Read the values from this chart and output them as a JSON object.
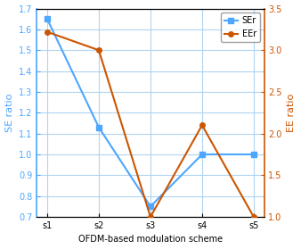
{
  "x_labels": [
    "s1",
    "s2",
    "s3",
    "s4",
    "s5"
  ],
  "SE_values": [
    1.65,
    1.13,
    0.75,
    1.0,
    1.0
  ],
  "EE_values": [
    3.22,
    3.0,
    1.0,
    2.1,
    1.0
  ],
  "SE_color": "#4da6ff",
  "EE_color": "#cc5500",
  "SE_label": "SEr",
  "EE_label": "EEr",
  "ylabel_left": "SE ratio",
  "ylabel_right": "EE ratio",
  "xlabel": "OFDM-based modulation scheme",
  "ylim_left": [
    0.7,
    1.7
  ],
  "ylim_right": [
    1.0,
    3.5
  ],
  "yticks_left": [
    0.7,
    0.8,
    0.9,
    1.0,
    1.1,
    1.2,
    1.3,
    1.4,
    1.5,
    1.6,
    1.7
  ],
  "yticks_right": [
    1.0,
    1.5,
    2.0,
    2.5,
    3.0,
    3.5
  ],
  "linewidth": 1.5,
  "markersize": 4,
  "SE_marker": "s",
  "EE_marker": "o",
  "legend_loc": "upper right",
  "figsize": [
    3.38,
    2.79
  ],
  "dpi": 100,
  "background_color": "#ffffff",
  "grid_color": "#b0d4f0"
}
